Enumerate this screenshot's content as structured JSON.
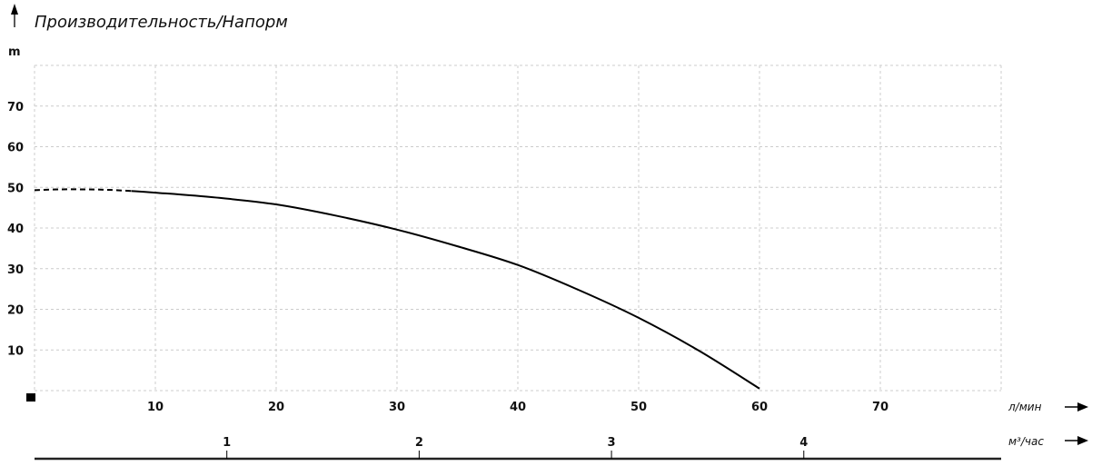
{
  "chart_data": {
    "type": "line",
    "title": "Производительность/Напорм",
    "ylabel": "m",
    "xlabel": "л/мин",
    "secondary_xlabel": "м³/час",
    "xlim": [
      0,
      80
    ],
    "ylim": [
      0,
      80
    ],
    "grid": true,
    "x_ticks": [
      10,
      20,
      30,
      40,
      50,
      60,
      70
    ],
    "y_ticks": [
      10,
      20,
      30,
      40,
      50,
      60,
      70
    ],
    "secondary_x_ticks": [
      1,
      2,
      3,
      4
    ],
    "series": [
      {
        "style": "dashed",
        "x": [
          0,
          2,
          4,
          6,
          8
        ],
        "y": [
          49.3,
          49.5,
          49.5,
          49.4,
          49.1
        ]
      },
      {
        "style": "solid",
        "x": [
          8,
          10,
          15,
          20,
          25,
          30,
          35,
          40,
          45,
          50,
          55,
          60
        ],
        "y": [
          49.1,
          48.7,
          47.5,
          45.8,
          43.0,
          39.6,
          35.5,
          30.9,
          24.8,
          17.9,
          9.8,
          0.5
        ]
      }
    ],
    "colors": {
      "line": "#000000",
      "grid": "#cccccc"
    }
  }
}
